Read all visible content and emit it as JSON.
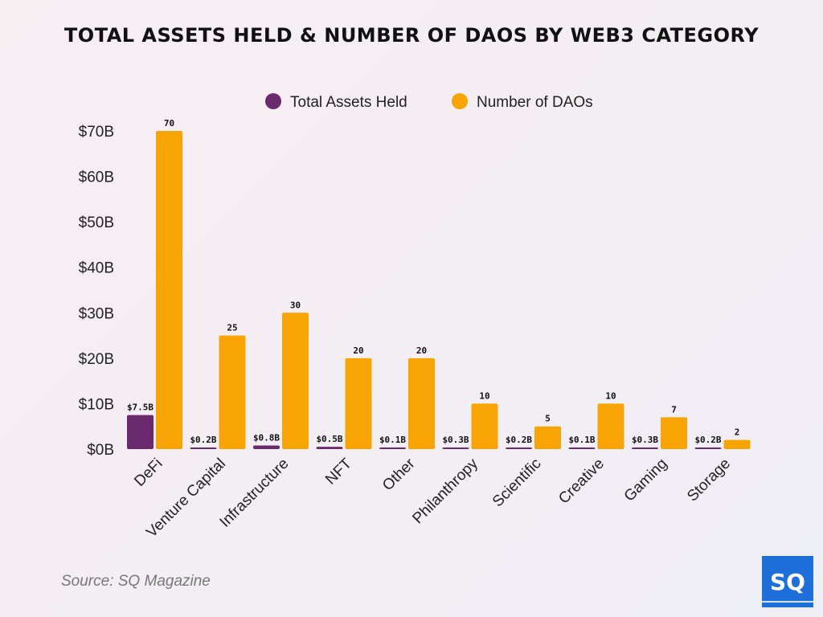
{
  "chart_data": {
    "type": "bar",
    "title": "TOTAL ASSETS HELD & NUMBER OF DAOS BY WEB3 CATEGORY",
    "categories": [
      "DeFi",
      "Venture Capital",
      "Infrastructure",
      "NFT",
      "Other",
      "Philanthropy",
      "Scientific",
      "Creative",
      "Gaming",
      "Storage"
    ],
    "series": [
      {
        "name": "Total Assets Held",
        "color": "#6b2a6e",
        "values": [
          7.5,
          0.2,
          0.8,
          0.5,
          0.1,
          0.3,
          0.2,
          0.1,
          0.3,
          0.2
        ],
        "labels": [
          "$7.5B",
          "$0.2B",
          "$0.8B",
          "$0.5B",
          "$0.1B",
          "$0.3B",
          "$0.2B",
          "$0.1B",
          "$0.3B",
          "$0.2B"
        ]
      },
      {
        "name": "Number of DAOs",
        "color": "#f8a404",
        "values": [
          70,
          25,
          30,
          20,
          20,
          10,
          5,
          10,
          7,
          2
        ],
        "labels": [
          "70",
          "25",
          "30",
          "20",
          "20",
          "10",
          "5",
          "10",
          "7",
          "2"
        ]
      }
    ],
    "yticks": [
      "$0B",
      "$10B",
      "$20B",
      "$30B",
      "$40B",
      "$50B",
      "$60B",
      "$70B"
    ],
    "ylim": [
      0,
      70
    ],
    "grid": false,
    "legend": "top-center"
  },
  "source": "Source: SQ Magazine",
  "logo": "SQ"
}
